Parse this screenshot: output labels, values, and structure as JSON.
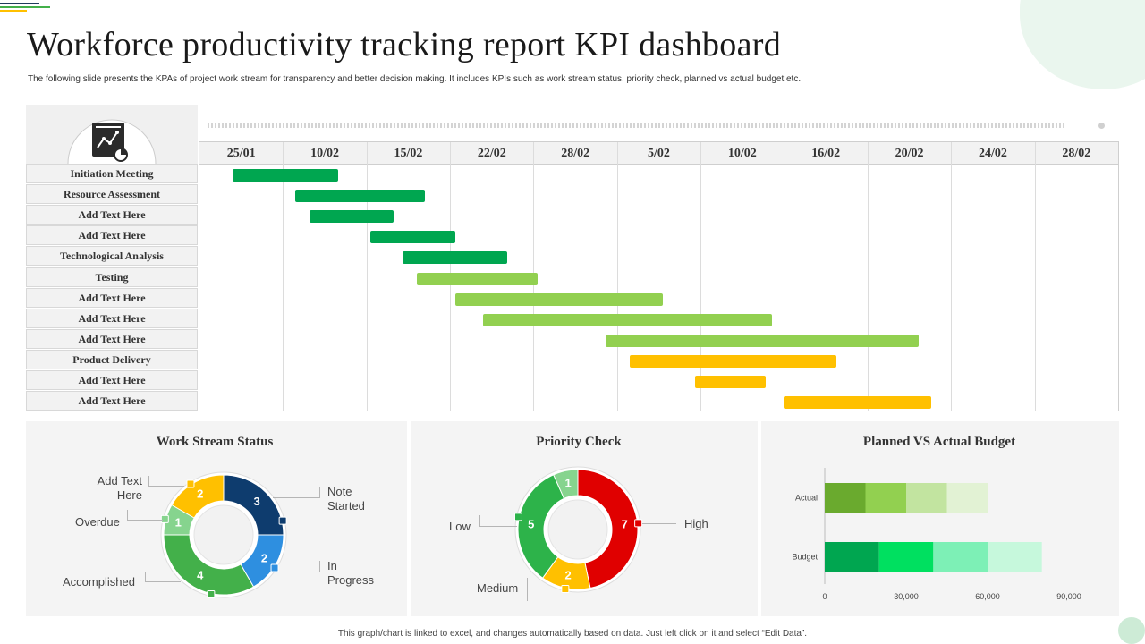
{
  "page": {
    "title": "Workforce productivity tracking report KPI dashboard",
    "subtitle": "The following slide presents the KPAs of project work stream for transparency and better decision making. It includes KPIs such as work stream status, priority check, planned vs actual budget etc.",
    "footer": "This graph/chart is linked to excel, and changes automatically based on data. Just left click on it and select “Edit Data”.",
    "icon": "report-document-icon"
  },
  "chart_data": [
    {
      "type": "gantt",
      "dates": [
        "25/01",
        "10/02",
        "15/02",
        "22/02",
        "28/02",
        "5/02",
        "10/02",
        "16/02",
        "20/02",
        "24/02",
        "28/02"
      ],
      "tasks": [
        {
          "name": "Initiation Meeting",
          "start": 0.4,
          "end": 1.66,
          "color": "#00a650"
        },
        {
          "name": "Resource Assessment",
          "start": 1.15,
          "end": 2.7,
          "color": "#00a650"
        },
        {
          "name": "Add Text Here",
          "start": 1.32,
          "end": 2.32,
          "color": "#00a650"
        },
        {
          "name": "Add Text Here",
          "start": 2.05,
          "end": 3.06,
          "color": "#00a650"
        },
        {
          "name": "Technological Analysis",
          "start": 2.43,
          "end": 3.69,
          "color": "#00a650"
        },
        {
          "name": "Testing",
          "start": 2.6,
          "end": 4.05,
          "color": "#92d050"
        },
        {
          "name": "Add Text Here",
          "start": 3.06,
          "end": 5.55,
          "color": "#92d050"
        },
        {
          "name": "Add Text Here",
          "start": 3.4,
          "end": 6.86,
          "color": "#92d050"
        },
        {
          "name": "Add Text Here",
          "start": 4.86,
          "end": 8.61,
          "color": "#92d050"
        },
        {
          "name": "Product Delivery",
          "start": 5.15,
          "end": 7.63,
          "color": "#ffc000"
        },
        {
          "name": "Add Text Here",
          "start": 5.93,
          "end": 6.78,
          "color": "#ffc000"
        },
        {
          "name": "Add Text Here",
          "start": 6.99,
          "end": 8.76,
          "color": "#ffc000"
        }
      ]
    },
    {
      "type": "pie",
      "title": "Work Stream Status",
      "slices": [
        {
          "label": "Note Started",
          "value": 3,
          "color": "#0e3c6e"
        },
        {
          "label": "In Progress",
          "value": 2,
          "color": "#2e8fe0"
        },
        {
          "label": "Accomplished",
          "value": 4,
          "color": "#43b04a"
        },
        {
          "label": "Overdue",
          "value": 1,
          "color": "#86d48e"
        },
        {
          "label": "Add Text Here",
          "value": 2,
          "color": "#ffc000"
        }
      ]
    },
    {
      "type": "pie",
      "title": "Priority Check",
      "slices": [
        {
          "label": "High",
          "value": 7,
          "color": "#e00000"
        },
        {
          "label": "Medium",
          "value": 2,
          "color": "#ffc000"
        },
        {
          "label": "Low",
          "value": 5,
          "color": "#2db34a"
        },
        {
          "label": "",
          "value": 1,
          "color": "#86d48e"
        }
      ]
    },
    {
      "type": "bar",
      "title": "Planned VS Actual Budget",
      "orientation": "horizontal",
      "stacked": true,
      "categories": [
        "Actual",
        "Budget"
      ],
      "xlim": [
        0,
        90000
      ],
      "xticks": [
        "0",
        "30,000",
        "60,000",
        "90,000"
      ],
      "segments": [
        {
          "category": "Actual",
          "values": [
            15000,
            15000,
            15000,
            15000
          ],
          "colors": [
            "#6aaa2e",
            "#92d050",
            "#c2e4a0",
            "#e2f2d4"
          ]
        },
        {
          "category": "Budget",
          "values": [
            20000,
            20000,
            20000,
            20000
          ],
          "colors": [
            "#00a650",
            "#00e060",
            "#7df0b6",
            "#c6f8dc"
          ]
        }
      ]
    }
  ]
}
